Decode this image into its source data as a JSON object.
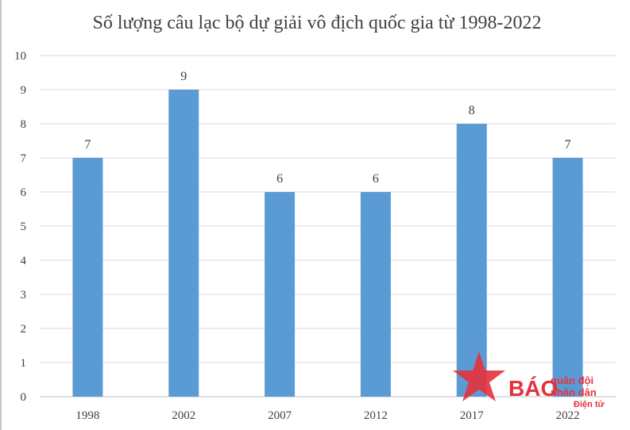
{
  "chart_data": {
    "type": "bar",
    "title": "Số lượng câu lạc bộ dự giải vô địch quốc gia từ 1998-2022",
    "categories": [
      "1998",
      "2002",
      "2007",
      "2012",
      "2017",
      "2022"
    ],
    "values": [
      7,
      9,
      6,
      6,
      8,
      7
    ],
    "data_labels": [
      "7",
      "9",
      "6",
      "6",
      "8",
      "7"
    ],
    "y_ticks": [
      "0",
      "1",
      "2",
      "3",
      "4",
      "5",
      "6",
      "7",
      "8",
      "9",
      "10"
    ],
    "ylim": [
      0,
      10
    ],
    "grid": true,
    "legend": "none",
    "bar_color": "#5b9bd5",
    "xlabel": "",
    "ylabel": ""
  },
  "watermark": {
    "brand": "BÁO",
    "line1": "quân đội",
    "line2": "nhân dân",
    "line3": "Điện tử",
    "star_color": "#e5323c",
    "text_color": "#e5323c"
  }
}
